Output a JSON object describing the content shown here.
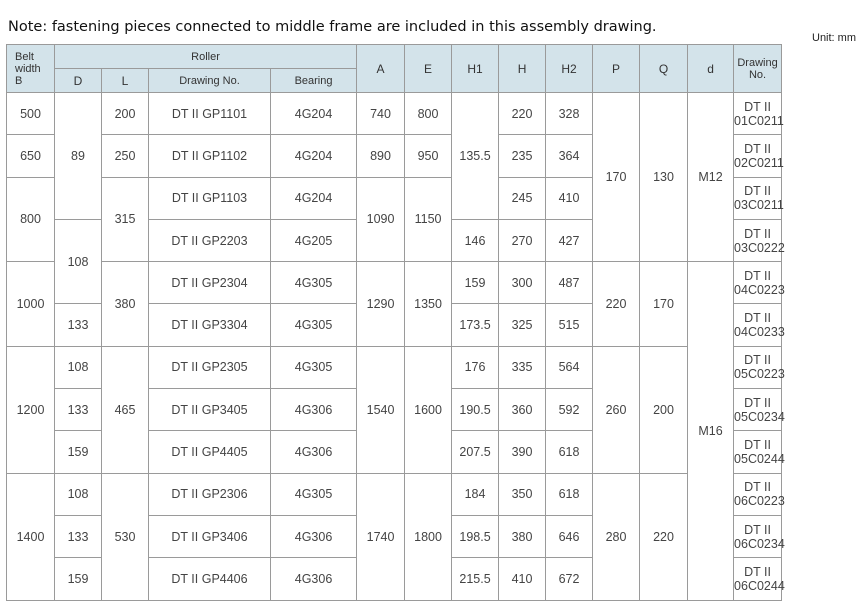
{
  "note": "Note: fastening pieces connected to middle frame are included in this assembly drawing.",
  "unit": "Unit: mm",
  "header": {
    "belt_width": [
      "Belt",
      "width",
      "B"
    ],
    "roller": "Roller",
    "roller_sub": [
      "D",
      "L",
      "Drawing No.",
      "Bearing"
    ],
    "cols": [
      "A",
      "E",
      "H1",
      "H",
      "H2",
      "P",
      "Q",
      "d",
      "Drawing No."
    ]
  },
  "rows": [
    [
      "500",
      "89",
      "200",
      "DT II GP1101",
      "4G204",
      "740",
      "800",
      "135.5",
      "220",
      "328",
      "170",
      "130",
      "M12",
      "DT II 01C0211"
    ],
    [
      "650",
      null,
      "250",
      "DT II GP1102",
      "4G204",
      "890",
      "950",
      null,
      "235",
      "364",
      null,
      null,
      null,
      "DT II 02C0211"
    ],
    [
      "800",
      null,
      "315",
      "DT II GP1103",
      "4G204",
      "1090",
      "1150",
      null,
      "245",
      "410",
      null,
      null,
      null,
      "DT II 03C0211"
    ],
    [
      null,
      "108",
      null,
      "DT II GP2203",
      "4G205",
      null,
      null,
      "146",
      "270",
      "427",
      null,
      null,
      null,
      "DT II 03C0222"
    ],
    [
      "1000",
      null,
      "380",
      "DT II GP2304",
      "4G305",
      "1290",
      "1350",
      "159",
      "300",
      "487",
      "220",
      "170",
      "M16",
      "DT II 04C0223"
    ],
    [
      null,
      "133",
      null,
      "DT II GP3304",
      "4G305",
      null,
      null,
      "173.5",
      "325",
      "515",
      null,
      null,
      null,
      "DT II 04C0233"
    ],
    [
      "1200",
      "108",
      "465",
      "DT II GP2305",
      "4G305",
      "1540",
      "1600",
      "176",
      "335",
      "564",
      "260",
      "200",
      null,
      "DT II 05C0223"
    ],
    [
      null,
      "133",
      null,
      "DT II GP3405",
      "4G306",
      null,
      null,
      "190.5",
      "360",
      "592",
      null,
      null,
      null,
      "DT II 05C0234"
    ],
    [
      null,
      "159",
      null,
      "DT II GP4405",
      "4G306",
      null,
      null,
      "207.5",
      "390",
      "618",
      null,
      null,
      null,
      "DT II 05C0244"
    ],
    [
      "1400",
      "108",
      "530",
      "DT II GP2306",
      "4G305",
      "1740",
      "1800",
      "184",
      "350",
      "618",
      "280",
      "220",
      null,
      "DT II 06C0223"
    ],
    [
      null,
      "133",
      null,
      "DT II GP3406",
      "4G306",
      null,
      null,
      "198.5",
      "380",
      "646",
      null,
      null,
      null,
      "DT II 06C0234"
    ],
    [
      null,
      "159",
      null,
      "DT II GP4406",
      "4G306",
      null,
      null,
      "215.5",
      "410",
      "672",
      null,
      null,
      null,
      "DT II 06C0244"
    ]
  ],
  "colors": {
    "header_bg": "#d3e3ea",
    "border": "#9a9a9a"
  }
}
